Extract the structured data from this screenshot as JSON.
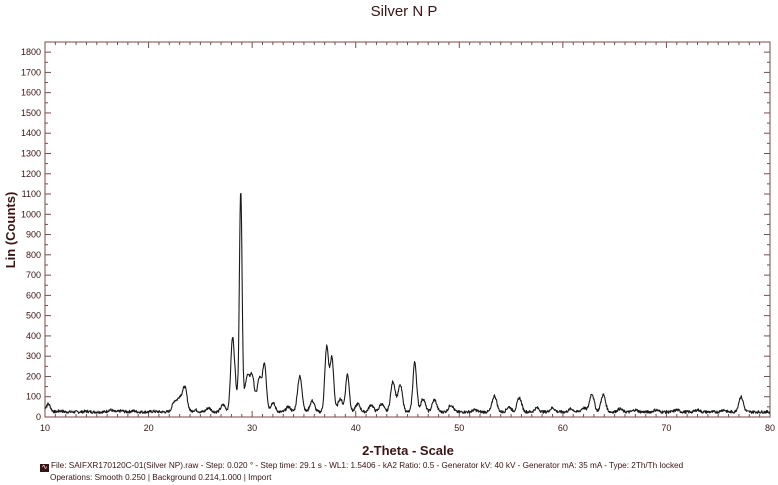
{
  "chart_data": {
    "type": "line",
    "title": "Silver N P",
    "xlabel": "2-Theta - Scale",
    "ylabel": "Lin (Counts)",
    "xlim": [
      10,
      80
    ],
    "ylim": [
      0,
      1850
    ],
    "x_ticks": [
      10,
      20,
      30,
      40,
      50,
      60,
      70,
      80
    ],
    "y_ticks": [
      0,
      100,
      200,
      300,
      400,
      500,
      600,
      700,
      800,
      900,
      1000,
      1100,
      1200,
      1300,
      1400,
      1500,
      1600,
      1700,
      1800
    ],
    "grid": false,
    "legend": "none",
    "line_color": "#1a1a1a",
    "baseline": 25,
    "peaks": [
      {
        "x": 10.3,
        "y": 65
      },
      {
        "x": 11.5,
        "y": 30
      },
      {
        "x": 14.0,
        "y": 28
      },
      {
        "x": 16.3,
        "y": 35
      },
      {
        "x": 17.4,
        "y": 30
      },
      {
        "x": 18.5,
        "y": 30
      },
      {
        "x": 20.5,
        "y": 28
      },
      {
        "x": 22.5,
        "y": 75
      },
      {
        "x": 23.0,
        "y": 90
      },
      {
        "x": 23.5,
        "y": 145
      },
      {
        "x": 24.5,
        "y": 35
      },
      {
        "x": 25.8,
        "y": 45
      },
      {
        "x": 27.2,
        "y": 60
      },
      {
        "x": 28.1,
        "y": 355
      },
      {
        "x": 28.4,
        "y": 115
      },
      {
        "x": 28.9,
        "y": 1105
      },
      {
        "x": 29.5,
        "y": 190
      },
      {
        "x": 30.0,
        "y": 200
      },
      {
        "x": 30.7,
        "y": 190
      },
      {
        "x": 31.2,
        "y": 255
      },
      {
        "x": 32.0,
        "y": 70
      },
      {
        "x": 33.5,
        "y": 50
      },
      {
        "x": 34.6,
        "y": 200
      },
      {
        "x": 35.8,
        "y": 80
      },
      {
        "x": 37.2,
        "y": 345
      },
      {
        "x": 37.7,
        "y": 290
      },
      {
        "x": 38.5,
        "y": 90
      },
      {
        "x": 39.2,
        "y": 210
      },
      {
        "x": 40.2,
        "y": 65
      },
      {
        "x": 41.5,
        "y": 60
      },
      {
        "x": 42.5,
        "y": 65
      },
      {
        "x": 43.6,
        "y": 175
      },
      {
        "x": 44.3,
        "y": 155
      },
      {
        "x": 45.7,
        "y": 270
      },
      {
        "x": 46.5,
        "y": 90
      },
      {
        "x": 47.6,
        "y": 85
      },
      {
        "x": 49.2,
        "y": 60
      },
      {
        "x": 51.5,
        "y": 35
      },
      {
        "x": 53.4,
        "y": 105
      },
      {
        "x": 54.8,
        "y": 50
      },
      {
        "x": 55.8,
        "y": 95
      },
      {
        "x": 57.5,
        "y": 45
      },
      {
        "x": 59.0,
        "y": 45
      },
      {
        "x": 60.8,
        "y": 40
      },
      {
        "x": 62.0,
        "y": 45
      },
      {
        "x": 62.8,
        "y": 115
      },
      {
        "x": 63.9,
        "y": 110
      },
      {
        "x": 65.5,
        "y": 40
      },
      {
        "x": 67.0,
        "y": 35
      },
      {
        "x": 69.0,
        "y": 35
      },
      {
        "x": 71.0,
        "y": 35
      },
      {
        "x": 73.0,
        "y": 35
      },
      {
        "x": 75.5,
        "y": 35
      },
      {
        "x": 77.2,
        "y": 100
      },
      {
        "x": 78.5,
        "y": 25
      }
    ]
  },
  "footer": {
    "line1": "File: SAIFXR170120C-01(Silver NP).raw - Step: 0.020 ° - Step time: 29.1 s - WL1: 1.5406 - kA2 Ratio: 0.5 - Generator kV: 40 kV - Generator mA: 35 mA - Type: 2Th/Th locked",
    "line2": "Operations: Smooth 0.250 | Background 0.214,1.000 | Import",
    "icon": "file-icon"
  }
}
